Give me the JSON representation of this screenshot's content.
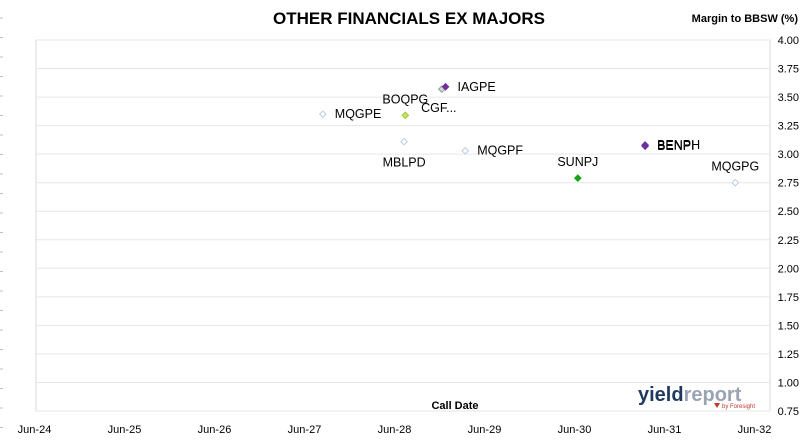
{
  "chart_data": {
    "type": "scatter",
    "title": "OTHER FINANCIALS EX MAJORS",
    "xlabel": "Call Date",
    "ylabel": "Margin to BBSW (%)",
    "x_ticks": [
      "Jun-24",
      "Jun-25",
      "Jun-26",
      "Jun-27",
      "Jun-28",
      "Jun-29",
      "Jun-30",
      "Jun-31",
      "Jun-32"
    ],
    "xlim": [
      "2024-06",
      "2032-06"
    ],
    "ylim": [
      0.75,
      4.0
    ],
    "y_ticks": [
      "0.75",
      "1.00",
      "1.25",
      "1.50",
      "1.75",
      "2.00",
      "2.25",
      "2.50",
      "2.75",
      "3.00",
      "3.25",
      "3.50",
      "3.75",
      "4.00"
    ],
    "y_axis_position": "right",
    "grid": "horizontal",
    "points": [
      {
        "label": "MQGPE",
        "date": "2027-08-15",
        "y": 3.35,
        "color": "#b7cde8",
        "fill": "none",
        "label_pos": "right"
      },
      {
        "label": "MBLPD",
        "date": "2028-07-10",
        "y": 3.11,
        "color": "#b7cde8",
        "fill": "none",
        "label_pos": "below"
      },
      {
        "label": "BOQPG",
        "date": "2028-07-15",
        "y": 3.34,
        "color": "#9acd32",
        "fill": "#c5e06b",
        "label_pos": "above"
      },
      {
        "label": "CGF...",
        "date": "2028-12-10",
        "y": 3.57,
        "color": "#8ea58e",
        "fill": "#cfe0cf",
        "label_pos": "below-left"
      },
      {
        "label": "IAGPE",
        "date": "2028-12-25",
        "y": 3.59,
        "color": "#7030a0",
        "fill": "#7030a0",
        "label_pos": "right"
      },
      {
        "label": "MQGPF",
        "date": "2029-03-15",
        "y": 3.03,
        "color": "#b7cde8",
        "fill": "none",
        "label_pos": "right"
      },
      {
        "label": "SUNPJ",
        "date": "2030-06-15",
        "y": 2.79,
        "color": "#1aa31a",
        "fill": "#1aa31a",
        "label_pos": "above"
      },
      {
        "label": "BENPH",
        "date": "2031-03-15",
        "y": 3.08,
        "color": "#7030a0",
        "fill": "#7030a0",
        "label_pos": "right"
      },
      {
        "label": "BENPI",
        "date": "2031-03-15",
        "y": 3.07,
        "color": "#7030a0",
        "fill": "#7030a0",
        "label_pos": "right"
      },
      {
        "label": "MQGPG",
        "date": "2032-03-15",
        "y": 2.75,
        "color": "#b7cde8",
        "fill": "none",
        "label_pos": "above"
      }
    ]
  },
  "logo": {
    "part1": "yield",
    "part2": "report",
    "sub": "by Foresight"
  }
}
